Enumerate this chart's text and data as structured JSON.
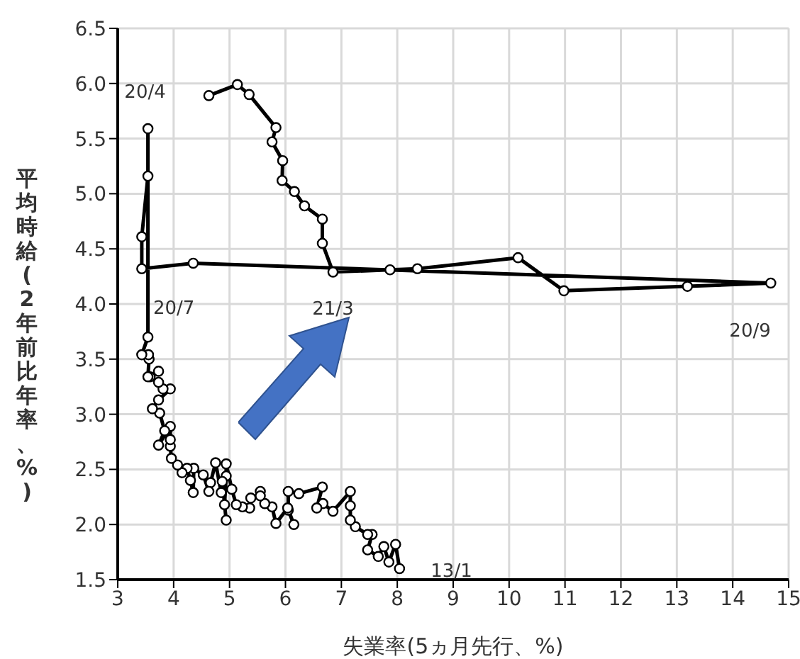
{
  "chart_data": {
    "type": "line",
    "xlabel": "失業率(5ヵ月先行、%)",
    "ylabel": "平均時給(2年前比年率、%)",
    "x": [
      8.04,
      7.97,
      7.85,
      7.76,
      7.66,
      7.47,
      7.55,
      7.47,
      7.25,
      7.16,
      7.16,
      7.16,
      6.85,
      6.67,
      6.56,
      6.66,
      6.24,
      6.05,
      6.05,
      6.15,
      6.04,
      5.83,
      5.76,
      5.63,
      5.55,
      5.55,
      5.38,
      5.36,
      5.23,
      5.12,
      5.04,
      4.94,
      4.94,
      4.91,
      4.94,
      4.87,
      4.85,
      4.75,
      4.66,
      4.63,
      4.53,
      4.36,
      4.35,
      4.3,
      4.24,
      4.15,
      4.07,
      3.96,
      3.94,
      3.94,
      3.94,
      3.73,
      3.84,
      3.75,
      3.62,
      3.73,
      3.94,
      3.81,
      3.73,
      3.58,
      3.73,
      3.54,
      3.56,
      3.55,
      3.43,
      3.54,
      3.54,
      3.54,
      3.43,
      3.43,
      4.35,
      14.68,
      13.19,
      10.98,
      10.16,
      8.36,
      7.87,
      6.85,
      6.66,
      6.66,
      6.34,
      6.16,
      5.94,
      5.95,
      5.76,
      5.83,
      5.35,
      5.14,
      4.63
    ],
    "values": [
      1.6,
      1.82,
      1.66,
      1.8,
      1.71,
      1.77,
      1.91,
      1.91,
      1.98,
      2.04,
      2.17,
      2.3,
      2.12,
      2.19,
      2.15,
      2.34,
      2.28,
      2.3,
      2.13,
      2.0,
      2.15,
      2.01,
      2.16,
      2.19,
      2.3,
      2.26,
      2.24,
      2.15,
      2.16,
      2.18,
      2.32,
      2.55,
      2.44,
      2.18,
      2.04,
      2.39,
      2.29,
      2.56,
      2.38,
      2.3,
      2.45,
      2.51,
      2.29,
      2.4,
      2.51,
      2.47,
      2.54,
      2.6,
      2.71,
      2.77,
      2.89,
      2.72,
      2.85,
      3.01,
      3.05,
      3.13,
      3.23,
      3.23,
      3.29,
      3.34,
      3.39,
      3.34,
      3.5,
      3.54,
      3.54,
      3.7,
      5.59,
      5.16,
      4.61,
      4.32,
      4.37,
      4.19,
      4.16,
      4.12,
      4.42,
      4.32,
      4.31,
      4.29,
      4.55,
      4.77,
      4.89,
      5.02,
      5.12,
      5.3,
      5.47,
      5.6,
      5.9,
      5.99,
      5.89
    ],
    "color": "#000000",
    "marker": "circle",
    "xlim": [
      3,
      15
    ],
    "xticks": [
      3,
      4,
      5,
      6,
      7,
      8,
      9,
      10,
      11,
      12,
      13,
      14,
      15
    ],
    "ylim": [
      1.5,
      6.5
    ],
    "yticks": [
      1.5,
      {
        "value": 2,
        "label": "2.0"
      },
      2.5,
      {
        "value": 3,
        "label": "3.0"
      },
      3.5,
      {
        "value": 4,
        "label": "4.0"
      },
      4.5,
      {
        "value": 5,
        "label": "5.0"
      },
      5.5,
      {
        "value": 6,
        "label": "6.0"
      },
      6.5
    ],
    "grid": true,
    "annotations": [
      {
        "text": "13/1",
        "x": 8.04,
        "y": 1.6
      },
      {
        "text": "20/4",
        "x": 3.54,
        "y": 5.59
      },
      {
        "text": "20/7",
        "x": 3.43,
        "y": 4.32
      },
      {
        "text": "21/3",
        "x": 6.85,
        "y": 4.29
      },
      {
        "text": "20/9",
        "x": 14.68,
        "y": 4.19
      }
    ]
  }
}
